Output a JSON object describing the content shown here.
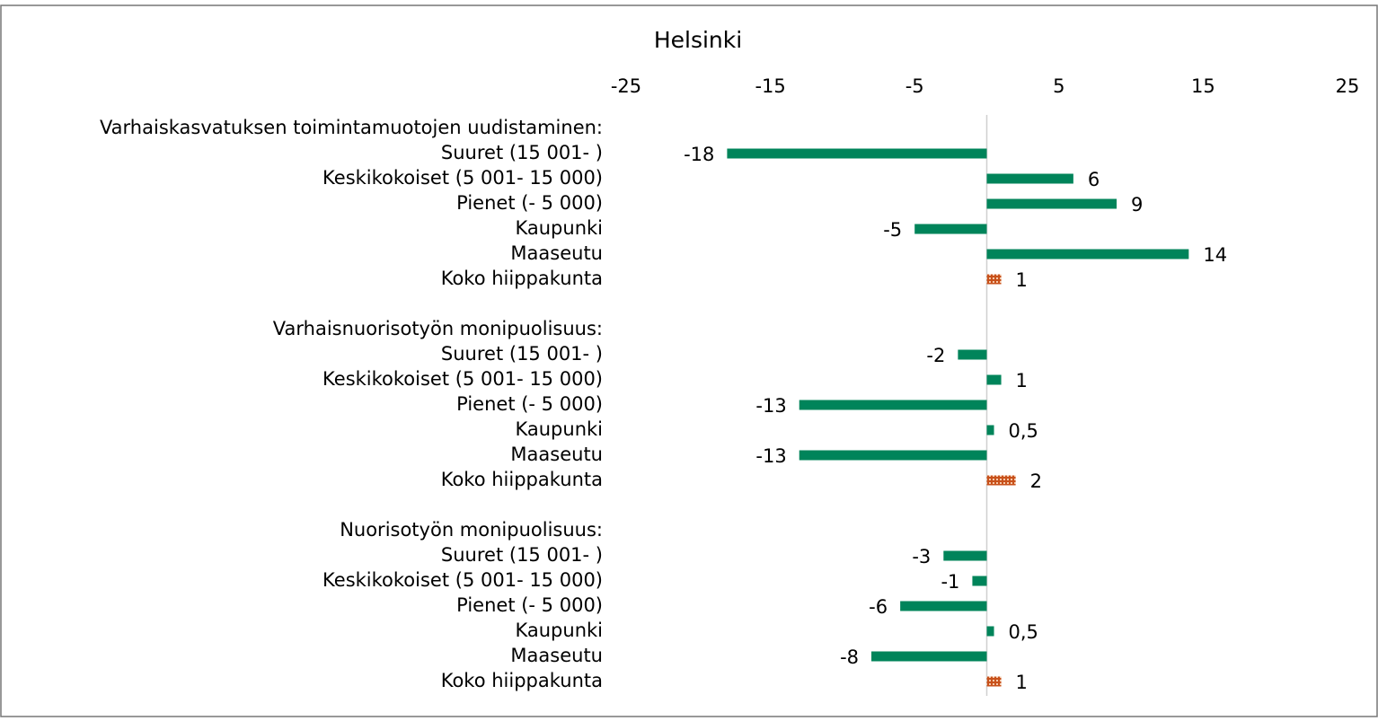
{
  "chart_data": {
    "type": "bar",
    "orientation": "horizontal",
    "title": "Helsinki",
    "categories": [
      "Varhaiskasvatuksen toimintamuotojen uudistaminen:",
      "Suuret (15 001- )",
      "Keskikokoiset (5 001- 15 000)",
      "Pienet (- 5 000)",
      "Kaupunki",
      "Maaseutu",
      "Koko hiippakunta",
      null,
      "Varhaisnuorisotyön monipuolisuus:",
      "Suuret (15 001- )",
      "Keskikokoiset (5 001- 15 000)",
      "Pienet (- 5 000)",
      "Kaupunki",
      "Maaseutu",
      "Koko hiippakunta",
      null,
      "Nuorisotyön monipuolisuus:",
      "Suuret (15 001- )",
      "Keskikokoiset (5 001- 15 000)",
      "Pienet (- 5 000)",
      "Kaupunki",
      "Maaseutu",
      "Koko hiippakunta"
    ],
    "values": [
      null,
      -18,
      6,
      9,
      -5,
      14,
      1,
      null,
      null,
      -2,
      1,
      -13,
      0.5,
      -13,
      2,
      null,
      null,
      -3,
      -1,
      -6,
      0.5,
      -8,
      1
    ],
    "value_labels": [
      null,
      "-18",
      "6",
      "9",
      "-5",
      "14",
      "1",
      null,
      null,
      "-2",
      "1",
      "-13",
      "0,5",
      "-13",
      "2",
      null,
      null,
      "-3",
      "-1",
      "-6",
      "0,5",
      "-8",
      "1"
    ],
    "colors": [
      null,
      "#00845a",
      "#00845a",
      "#00845a",
      "#00845a",
      "#00845a",
      "#c8511b",
      null,
      null,
      "#00845a",
      "#00845a",
      "#00845a",
      "#00845a",
      "#00845a",
      "#c8511b",
      null,
      null,
      "#00845a",
      "#00845a",
      "#00845a",
      "#00845a",
      "#00845a",
      "#c8511b"
    ],
    "xlim": [
      -25,
      25
    ],
    "xticks": [
      -25,
      -15,
      -5,
      5,
      15,
      25
    ],
    "grid": false
  }
}
